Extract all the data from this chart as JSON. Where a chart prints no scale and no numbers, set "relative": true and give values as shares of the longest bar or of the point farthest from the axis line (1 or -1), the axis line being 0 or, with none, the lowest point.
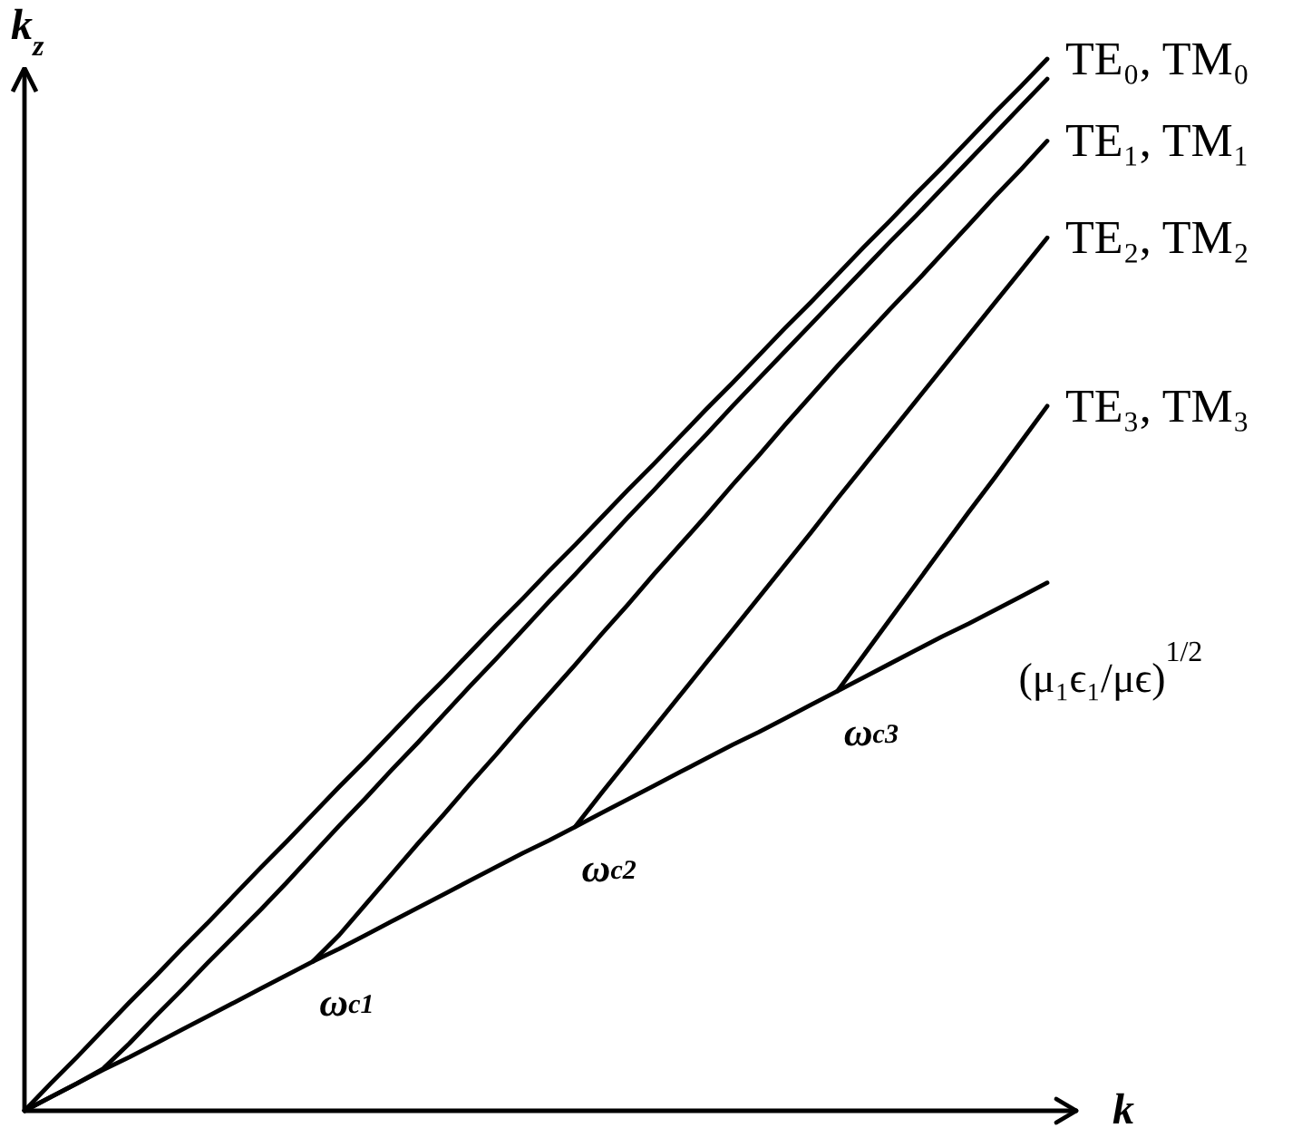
{
  "chart_data": {
    "type": "line",
    "relative": true,
    "xlabel": "k",
    "ylabel": "k$_{z}$",
    "categories": [
      null,
      null,
      null,
      null,
      null,
      null,
      null,
      null,
      null,
      null,
      null,
      null,
      null,
      null,
      null,
      null,
      null,
      null,
      null,
      null,
      null,
      null,
      null,
      null,
      null,
      null,
      null,
      null,
      null,
      null,
      null,
      null,
      null,
      null,
      null,
      null,
      null,
      null,
      null,
      null
    ],
    "series": [
      {
        "name": "TE₀, TM₀",
        "color": "#000000",
        "values": [
          0,
          0.026,
          0.051,
          0.077,
          0.103,
          0.128,
          0.154,
          0.179,
          0.205,
          0.231,
          0.256,
          0.282,
          0.308,
          0.333,
          0.359,
          0.385,
          0.41,
          0.436,
          0.462,
          0.487,
          0.513,
          0.538,
          0.564,
          0.59,
          0.615,
          0.641,
          0.667,
          0.692,
          0.718,
          0.744,
          0.769,
          0.795,
          0.821,
          0.846,
          0.872,
          0.897,
          0.923,
          0.949,
          0.974,
          1
        ]
      },
      {
        "color": "#000000",
        "values": [
          0,
          0.013,
          0.026,
          0.04,
          0.064,
          0.09,
          0.115,
          0.141,
          0.166,
          0.191,
          0.217,
          0.244,
          0.271,
          0.297,
          0.324,
          0.35,
          0.377,
          0.404,
          0.43,
          0.457,
          0.484,
          0.51,
          0.537,
          0.564,
          0.59,
          0.617,
          0.643,
          0.67,
          0.696,
          0.722,
          0.748,
          0.774,
          0.8,
          0.826,
          0.851,
          0.877,
          0.903,
          0.929,
          0.955,
          0.981
        ]
      },
      {
        "name": "TE₁, TM₁",
        "color": "#000000",
        "values": [
          null,
          null,
          null,
          null,
          null,
          null,
          null,
          null,
          null,
          null,
          null,
          0.142,
          0.167,
          0.196,
          0.225,
          0.254,
          0.282,
          0.311,
          0.339,
          0.368,
          0.396,
          0.424,
          0.453,
          0.481,
          0.51,
          0.538,
          0.566,
          0.595,
          0.623,
          0.652,
          0.68,
          0.708,
          0.735,
          0.762,
          0.788,
          0.815,
          0.842,
          0.869,
          0.895,
          0.922
        ]
      },
      {
        "name": "TE₂, TM₂",
        "color": "#000000",
        "values": [
          null,
          null,
          null,
          null,
          null,
          null,
          null,
          null,
          null,
          null,
          null,
          null,
          null,
          null,
          null,
          null,
          null,
          null,
          null,
          null,
          null,
          0.27,
          0.302,
          0.333,
          0.364,
          0.395,
          0.426,
          0.457,
          0.488,
          0.519,
          0.55,
          0.582,
          0.613,
          0.644,
          0.675,
          0.706,
          0.737,
          0.768,
          0.799,
          0.83
        ]
      },
      {
        "name": "TE₃, TM₃",
        "color": "#000000",
        "values": [
          null,
          null,
          null,
          null,
          null,
          null,
          null,
          null,
          null,
          null,
          null,
          null,
          null,
          null,
          null,
          null,
          null,
          null,
          null,
          null,
          null,
          null,
          null,
          null,
          null,
          null,
          null,
          null,
          null,
          null,
          null,
          0.399,
          0.433,
          0.467,
          0.501,
          0.535,
          0.569,
          0.602,
          0.636,
          0.67
        ]
      },
      {
        "name": "(μ₁ϵ₁/μϵ)$^{1/2}$",
        "color": "#000000",
        "values": [
          0,
          0.013,
          0.026,
          0.039,
          0.051,
          0.064,
          0.077,
          0.09,
          0.103,
          0.116,
          0.129,
          0.142,
          0.154,
          0.167,
          0.18,
          0.193,
          0.206,
          0.219,
          0.232,
          0.245,
          0.257,
          0.27,
          0.283,
          0.296,
          0.309,
          0.322,
          0.335,
          0.348,
          0.36,
          0.373,
          0.386,
          0.399,
          0.412,
          0.425,
          0.438,
          0.451,
          0.463,
          0.476,
          0.489,
          0.502
        ]
      }
    ],
    "annotations": [
      "ω$_{c1}$",
      "ω$_{c2}$",
      "ω$_{c3}$"
    ],
    "line_style": "solid",
    "grid": false,
    "legend": false,
    "tick_labels": false
  }
}
